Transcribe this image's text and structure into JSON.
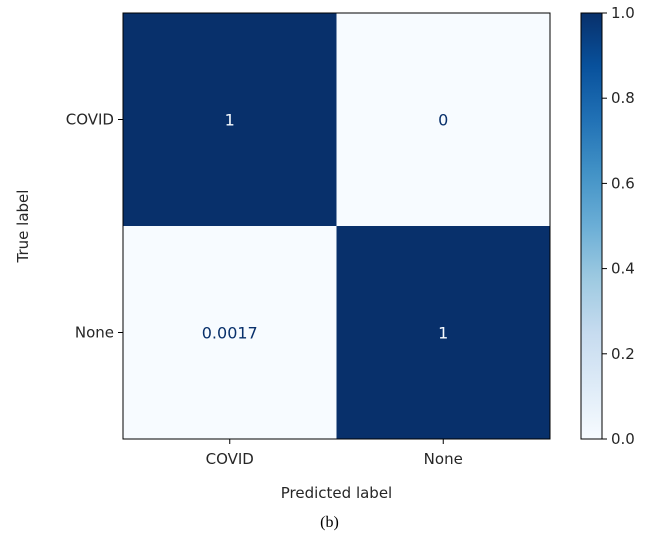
{
  "chart_data": {
    "type": "heatmap",
    "title": "",
    "xlabel": "Predicted label",
    "ylabel": "True label",
    "x_categories": [
      "COVID",
      "None"
    ],
    "y_categories": [
      "COVID",
      "None"
    ],
    "matrix": [
      [
        1,
        0
      ],
      [
        0.0017,
        1
      ]
    ],
    "cell_labels": [
      [
        "1",
        "0"
      ],
      [
        "0.0017",
        "1"
      ]
    ],
    "colormap": "Blues",
    "color_low": "#f7fbff",
    "color_high": "#08306b",
    "colorbar": {
      "range": [
        0.0,
        1.0
      ],
      "ticks": [
        "0.0",
        "0.2",
        "0.4",
        "0.6",
        "0.8",
        "1.0"
      ]
    },
    "grid": false
  },
  "caption": "(b)"
}
